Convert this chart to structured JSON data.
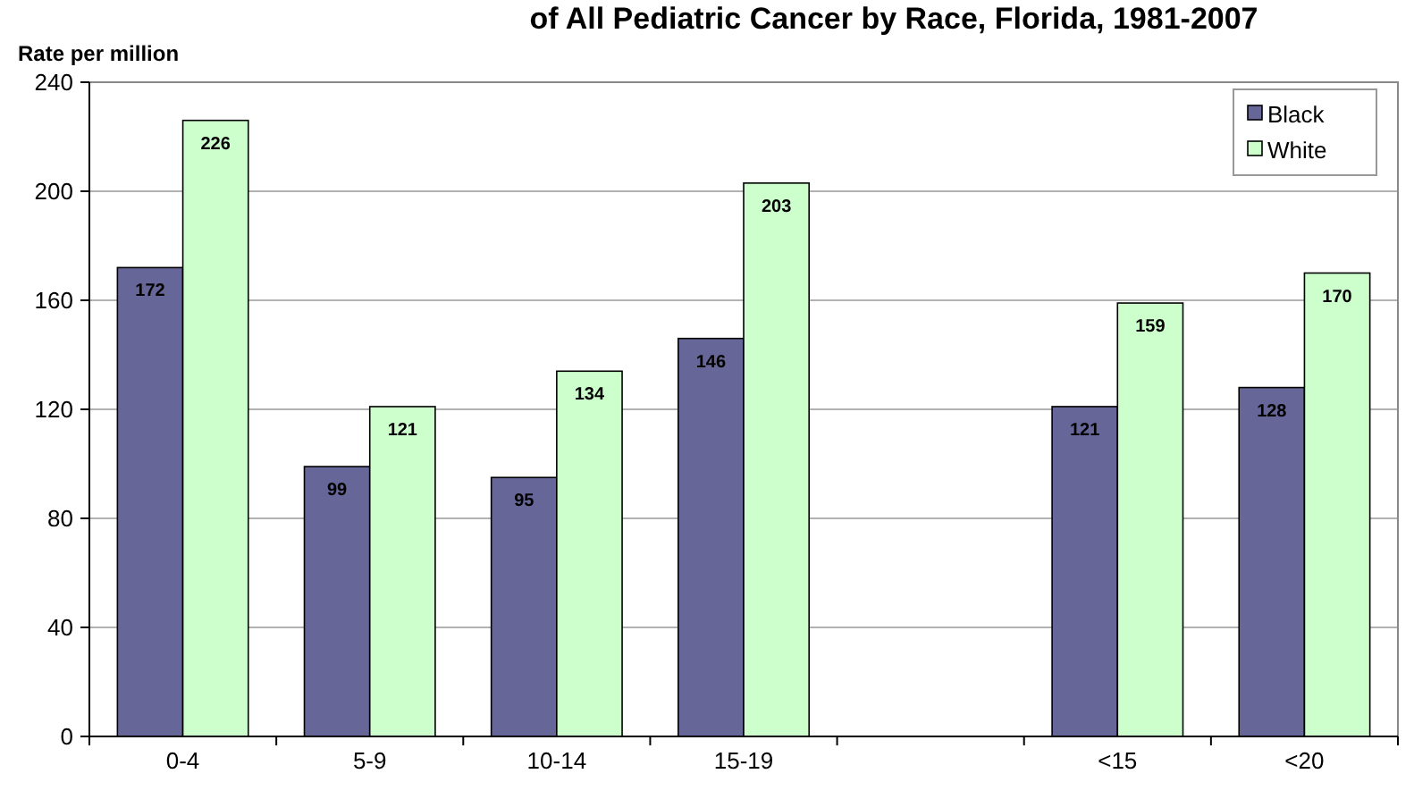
{
  "chart_data": {
    "type": "bar",
    "title": "of All Pediatric Cancer by Race, Florida, 1981-2007",
    "ylabel": "Rate per million",
    "categories": [
      "0-4",
      "5-9",
      "10-14",
      "15-19",
      null,
      "<15",
      "<20"
    ],
    "series": [
      {
        "name": "Black",
        "color": "#666699",
        "values": [
          172,
          99,
          95,
          146,
          null,
          121,
          128
        ]
      },
      {
        "name": "White",
        "color": "#ccffcc",
        "values": [
          226,
          121,
          134,
          203,
          null,
          159,
          170
        ]
      }
    ],
    "ylim": [
      0,
      240
    ],
    "yticks": [
      0,
      40,
      80,
      120,
      160,
      200,
      240
    ],
    "grid": "y",
    "legend": "top right",
    "data_labels": true
  }
}
